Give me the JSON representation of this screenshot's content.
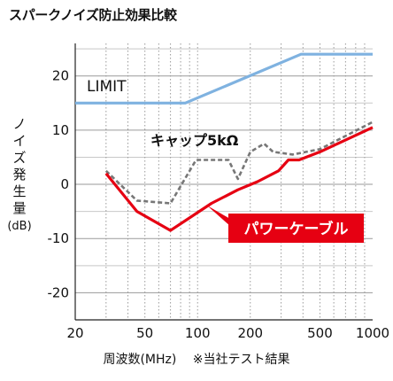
{
  "chart_data": {
    "type": "line",
    "title": "スパークノイズ防止効果比較",
    "xlabel": "周波数(MHz)",
    "ylabel": "ノイズ発生量",
    "ylabel_unit": "(dB)",
    "note": "※当社テスト結果",
    "x_scale": "log",
    "xlim": [
      20,
      1000
    ],
    "ylim": [
      -25,
      26
    ],
    "x_ticks": [
      20,
      50,
      100,
      200,
      500,
      1000
    ],
    "y_ticks": [
      20,
      10,
      0,
      -10,
      -20
    ],
    "grid": true,
    "series": [
      {
        "name": "LIMIT",
        "color": "#7fb2e0",
        "style": "solid",
        "x": [
          20,
          85,
          390,
          1000
        ],
        "y": [
          15,
          15,
          24,
          24
        ]
      },
      {
        "name": "キャップ5kΩ",
        "color": "#777777",
        "style": "dashed",
        "x": [
          30,
          45,
          70,
          98,
          150,
          170,
          200,
          240,
          270,
          350,
          500,
          1000
        ],
        "y": [
          2.5,
          -3,
          -3.5,
          4.5,
          4.5,
          1,
          6,
          7.5,
          6,
          5.5,
          6.5,
          11.5
        ]
      },
      {
        "name": "パワーケーブル",
        "color": "#e60012",
        "style": "solid",
        "x": [
          30,
          45,
          70,
          120,
          170,
          220,
          290,
          330,
          380,
          500,
          1000
        ],
        "y": [
          2,
          -5,
          -8.5,
          -3.5,
          -1,
          0.5,
          2.5,
          4.5,
          4.5,
          6,
          10.5
        ]
      }
    ]
  }
}
